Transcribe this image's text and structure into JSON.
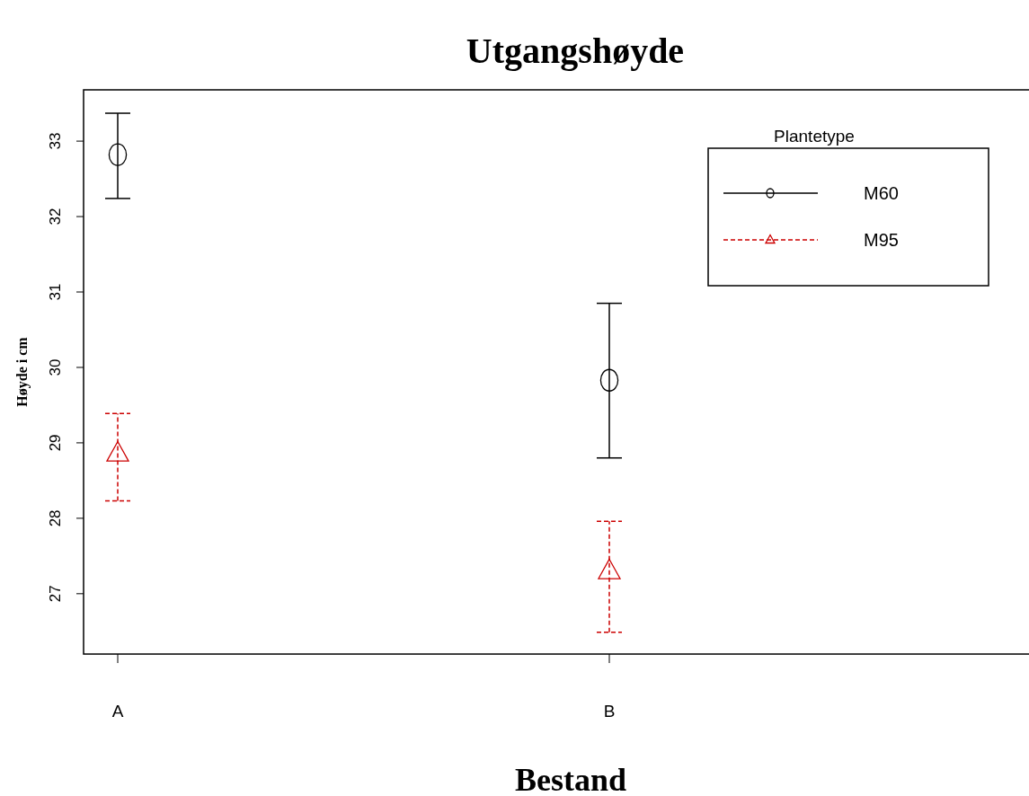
{
  "chart_data": {
    "type": "scatter",
    "title": "Utgangshøyde",
    "xlabel": "Bestand",
    "ylabel": "Høyde i cm",
    "legend_title": "Plantetype",
    "legend": "top right",
    "categories": [
      "A",
      "B"
    ],
    "ylim": [
      26.2,
      33.68
    ],
    "yticks": [
      27,
      28,
      29,
      30,
      31,
      32,
      33
    ],
    "series": [
      {
        "name": "M60",
        "color": "#000000",
        "marker": "circle",
        "line_style": "solid",
        "values": [
          32.82,
          29.83
        ],
        "errors": [
          [
            32.24,
            33.37
          ],
          [
            28.8,
            30.85
          ]
        ]
      },
      {
        "name": "M95",
        "color": "#cc0000",
        "marker": "triangle",
        "line_style": "dashed",
        "values": [
          28.86,
          27.3
        ],
        "errors": [
          [
            28.23,
            29.39
          ],
          [
            26.49,
            27.96
          ]
        ]
      }
    ]
  }
}
